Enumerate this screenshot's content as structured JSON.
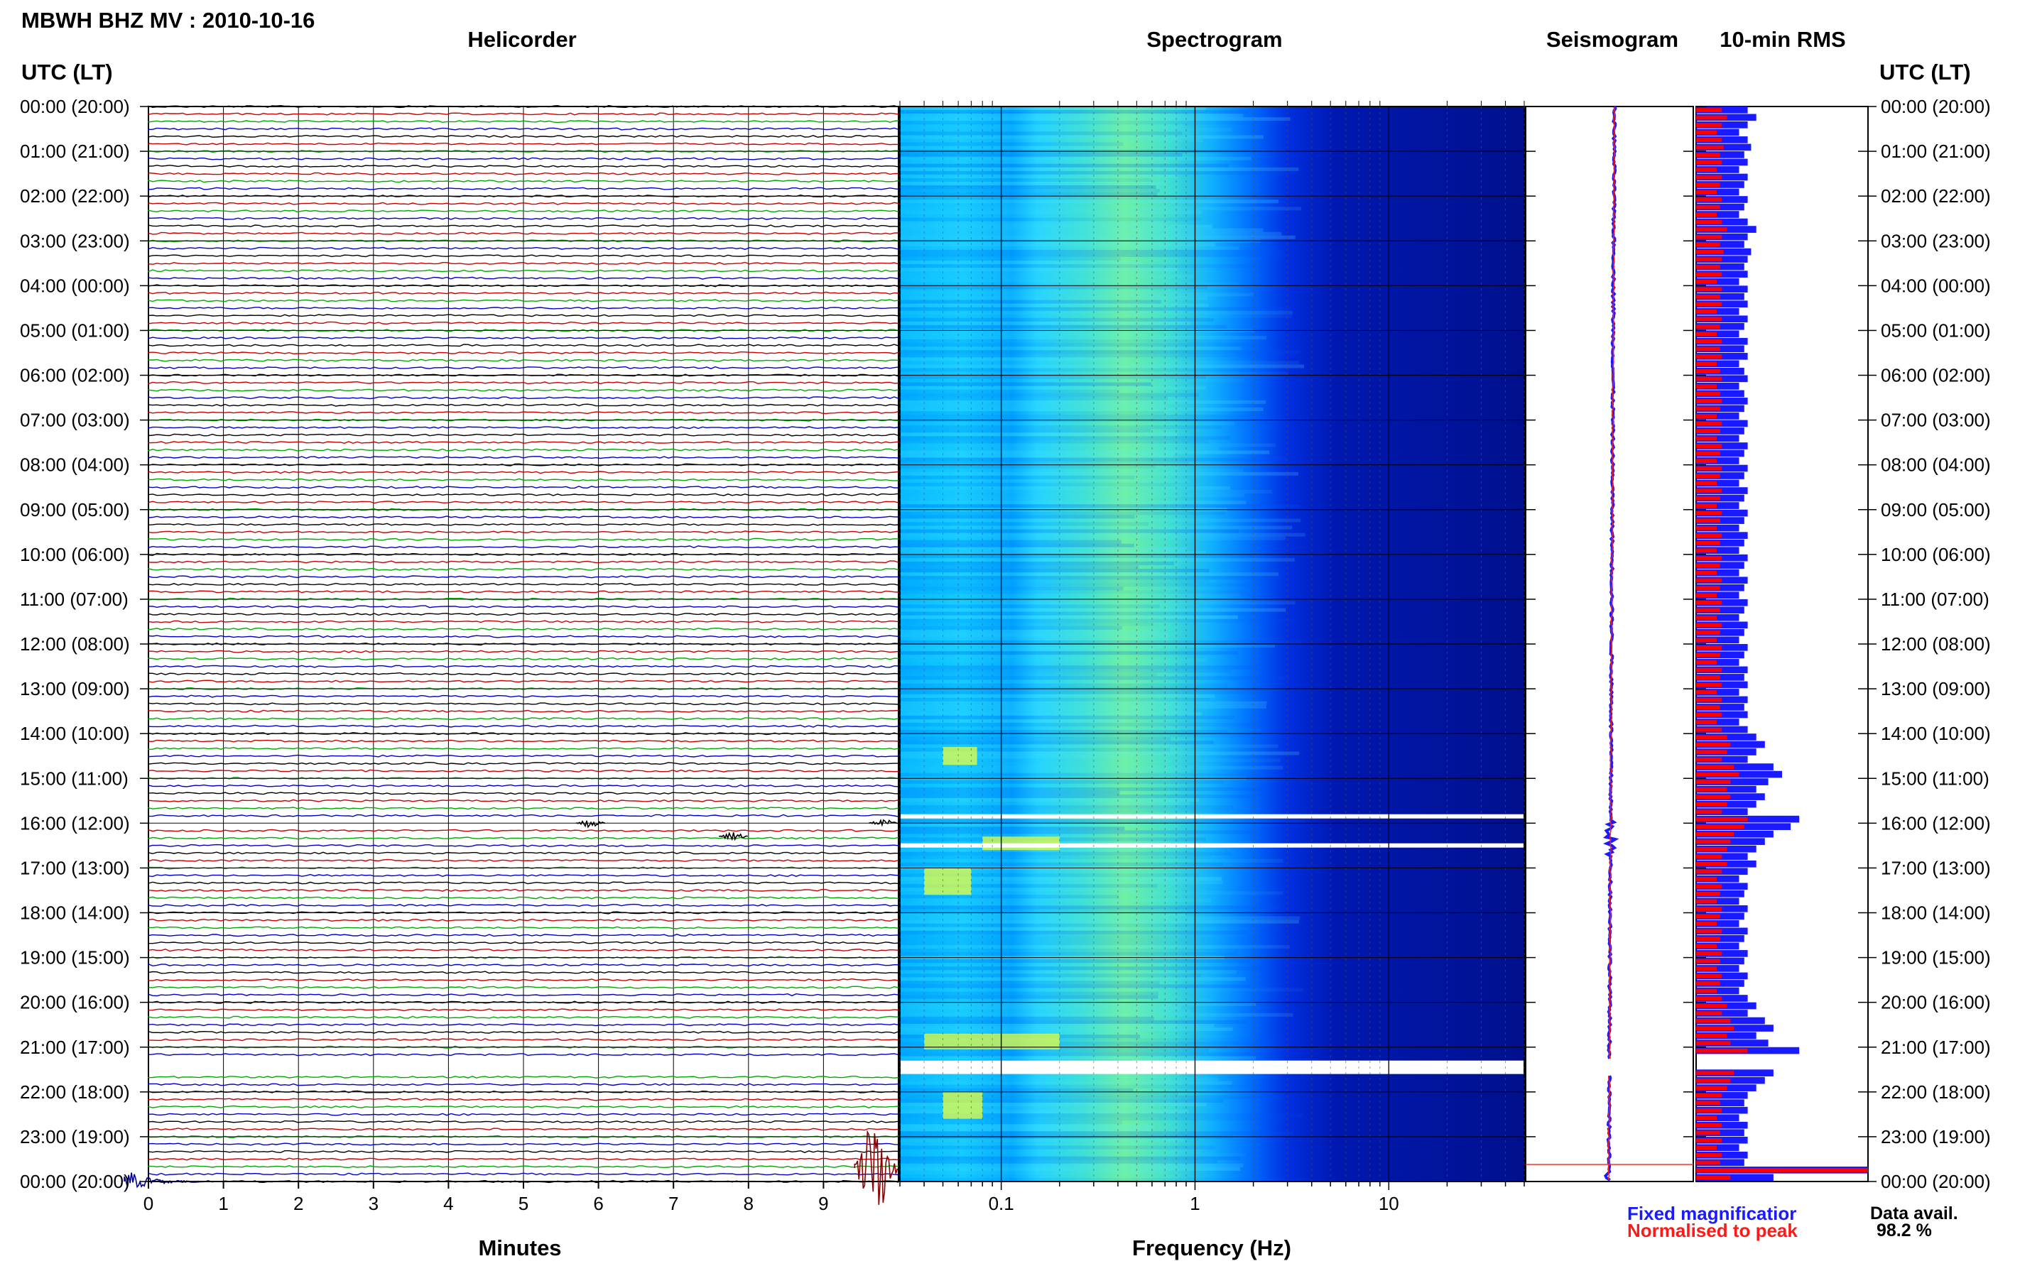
{
  "header": {
    "title": "MBWH BHZ MV : 2010-10-16"
  },
  "panels": {
    "helicorder": "Helicorder",
    "spectrogram": "Spectrogram",
    "seismogram": "Seismogram",
    "rms": "10-min RMS"
  },
  "axis": {
    "left_header": "UTC (LT)",
    "right_header": "UTC (LT)",
    "minutes_label": "Minutes",
    "frequency_label": "Frequency (Hz)",
    "time_ticks": [
      "00:00 (20:00)",
      "01:00 (21:00)",
      "02:00 (22:00)",
      "03:00 (23:00)",
      "04:00 (00:00)",
      "05:00 (01:00)",
      "06:00 (02:00)",
      "07:00 (03:00)",
      "08:00 (04:00)",
      "09:00 (05:00)",
      "10:00 (06:00)",
      "11:00 (07:00)",
      "12:00 (08:00)",
      "13:00 (09:00)",
      "14:00 (10:00)",
      "15:00 (11:00)",
      "16:00 (12:00)",
      "17:00 (13:00)",
      "18:00 (14:00)",
      "19:00 (15:00)",
      "20:00 (16:00)",
      "21:00 (17:00)",
      "22:00 (18:00)",
      "23:00 (19:00)",
      "00:00 (20:00)"
    ],
    "minute_ticks": [
      "0",
      "1",
      "2",
      "3",
      "4",
      "5",
      "6",
      "7",
      "8",
      "9"
    ],
    "freq_ticks": [
      "0.1",
      "1",
      "10"
    ]
  },
  "legend": {
    "fixed": "Fixed magnificatior",
    "normalised": "Normalised to peak"
  },
  "availability": {
    "label": "Data avail.",
    "value": "98.2 %"
  },
  "colors": {
    "trace_cycle": [
      "#000000",
      "#cc0000",
      "#00aa00",
      "#0000cc"
    ],
    "rms_fixed": "#1a1aff",
    "rms_normalised": "#ff0000",
    "spectro_low": "#001a8c",
    "spectro_high": "#ffff00"
  },
  "chart_data": [
    {
      "type": "line",
      "name": "helicorder",
      "title": "Helicorder",
      "xlabel": "Minutes",
      "xlim": [
        0,
        10
      ],
      "ylim_hours_utc": [
        0,
        24
      ],
      "rows_per_hour": 6,
      "events": [
        {
          "hour": 24.0,
          "minute": 0.2,
          "amplitude": "medium"
        },
        {
          "hour": 23.7,
          "minute": 9.7,
          "amplitude": "large"
        },
        {
          "hour": 16.3,
          "minute": 7.8,
          "amplitude": "small"
        },
        {
          "hour": 16.0,
          "minute": 5.9,
          "amplitude": "small"
        },
        {
          "hour": 16.0,
          "minute": 9.8,
          "amplitude": "small"
        }
      ],
      "gaps_utc": [
        [
          16.0,
          16.1
        ],
        [
          21.3,
          21.6
        ]
      ]
    },
    {
      "type": "heatmap",
      "name": "spectrogram",
      "title": "Spectrogram",
      "xlabel": "Frequency (Hz)",
      "xscale": "log",
      "xlim": [
        0.03,
        50
      ],
      "ylim_hours_utc": [
        0,
        24
      ],
      "gaps_utc": [
        [
          15.8,
          15.85
        ],
        [
          16.45,
          16.5
        ],
        [
          21.3,
          21.6
        ]
      ]
    },
    {
      "type": "line",
      "name": "seismogram",
      "title": "Seismogram",
      "ylim_hours_utc": [
        0,
        24
      ]
    },
    {
      "type": "bar",
      "name": "rms",
      "title": "10-min RMS",
      "orientation": "horizontal",
      "series": [
        {
          "name": "Fixed magnificatior",
          "values": [
            0.3,
            0.35,
            0.3,
            0.25,
            0.3,
            0.32,
            0.28,
            0.3,
            0.25,
            0.3,
            0.28,
            0.25,
            0.3,
            0.28,
            0.25,
            0.3,
            0.35,
            0.3,
            0.28,
            0.32,
            0.3,
            0.28,
            0.3,
            0.25,
            0.3,
            0.28,
            0.3,
            0.25,
            0.3,
            0.28,
            0.25,
            0.3,
            0.28,
            0.3,
            0.25,
            0.28,
            0.3,
            0.25,
            0.28,
            0.3,
            0.28,
            0.25,
            0.3,
            0.28,
            0.25,
            0.3,
            0.28,
            0.25,
            0.3,
            0.28,
            0.25,
            0.3,
            0.28,
            0.25,
            0.3,
            0.28,
            0.25,
            0.3,
            0.28,
            0.25,
            0.3,
            0.28,
            0.25,
            0.3,
            0.28,
            0.25,
            0.3,
            0.28,
            0.25,
            0.3,
            0.28,
            0.25,
            0.3,
            0.28,
            0.25,
            0.3,
            0.28,
            0.3,
            0.25,
            0.3,
            0.28,
            0.3,
            0.25,
            0.3,
            0.35,
            0.4,
            0.35,
            0.3,
            0.45,
            0.5,
            0.42,
            0.35,
            0.4,
            0.35,
            0.3,
            0.6,
            0.55,
            0.45,
            0.4,
            0.35,
            0.3,
            0.35,
            0.3,
            0.25,
            0.3,
            0.28,
            0.25,
            0.3,
            0.28,
            0.25,
            0.3,
            0.28,
            0.25,
            0.3,
            0.28,
            0.25,
            0.3,
            0.28,
            0.25,
            0.3,
            0.35,
            0.3,
            0.4,
            0.45,
            0.35,
            0.42,
            0.6,
            0.0,
            0.0,
            0.45,
            0.4,
            0.35,
            0.3,
            0.28,
            0.3,
            0.25,
            0.3,
            0.28,
            0.3,
            0.25,
            0.3,
            0.28,
            1.0,
            0.45
          ]
        },
        {
          "name": "Normalised to peak",
          "values": [
            0.15,
            0.18,
            0.15,
            0.12,
            0.15,
            0.16,
            0.14,
            0.15,
            0.12,
            0.15,
            0.14,
            0.12,
            0.15,
            0.14,
            0.12,
            0.15,
            0.18,
            0.15,
            0.14,
            0.16,
            0.15,
            0.14,
            0.15,
            0.12,
            0.15,
            0.14,
            0.15,
            0.12,
            0.15,
            0.14,
            0.12,
            0.15,
            0.14,
            0.15,
            0.12,
            0.14,
            0.15,
            0.12,
            0.14,
            0.15,
            0.14,
            0.12,
            0.15,
            0.14,
            0.12,
            0.15,
            0.14,
            0.12,
            0.15,
            0.14,
            0.12,
            0.15,
            0.14,
            0.12,
            0.15,
            0.14,
            0.12,
            0.15,
            0.14,
            0.12,
            0.15,
            0.14,
            0.12,
            0.15,
            0.14,
            0.12,
            0.15,
            0.14,
            0.12,
            0.15,
            0.14,
            0.12,
            0.15,
            0.14,
            0.12,
            0.15,
            0.14,
            0.15,
            0.12,
            0.15,
            0.14,
            0.15,
            0.12,
            0.15,
            0.18,
            0.2,
            0.18,
            0.15,
            0.22,
            0.25,
            0.2,
            0.18,
            0.2,
            0.18,
            0.15,
            0.3,
            0.28,
            0.22,
            0.2,
            0.18,
            0.15,
            0.18,
            0.15,
            0.12,
            0.15,
            0.14,
            0.12,
            0.15,
            0.14,
            0.12,
            0.15,
            0.14,
            0.12,
            0.15,
            0.14,
            0.12,
            0.15,
            0.14,
            0.12,
            0.15,
            0.18,
            0.15,
            0.2,
            0.22,
            0.18,
            0.2,
            0.3,
            0.0,
            0.0,
            0.22,
            0.2,
            0.18,
            0.15,
            0.14,
            0.15,
            0.12,
            0.15,
            0.14,
            0.15,
            0.12,
            0.15,
            0.14,
            1.0,
            0.2
          ]
        }
      ]
    }
  ]
}
